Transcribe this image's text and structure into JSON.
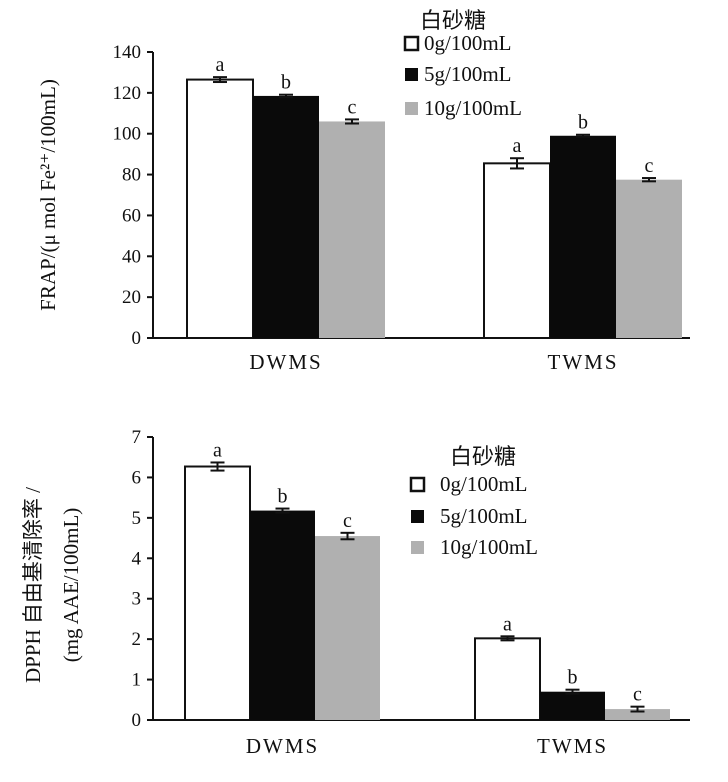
{
  "chart_data": [
    {
      "type": "bar",
      "ylabel": "FRAP/(μ mol Fe²⁺/100mL)",
      "ylim": [
        0,
        140
      ],
      "ytick_step": 20,
      "categories": [
        "DWMS",
        "TWMS"
      ],
      "legend_title": "白砂糖",
      "series": [
        {
          "name": "0g/100mL",
          "color": "#ffffff",
          "values": [
            126.5,
            85.5
          ],
          "errors": [
            1.2,
            2.5
          ],
          "letters": [
            "a",
            "a"
          ]
        },
        {
          "name": "5g/100mL",
          "color": "#0a0a0a",
          "values": [
            118.5,
            99.0
          ],
          "errors": [
            0.6,
            0.5
          ],
          "letters": [
            "b",
            "b"
          ]
        },
        {
          "name": "10g/100mL",
          "color": "#b0b0b0",
          "values": [
            106.0,
            77.5
          ],
          "errors": [
            1.0,
            0.8
          ],
          "letters": [
            "c",
            "c"
          ]
        }
      ]
    },
    {
      "type": "bar",
      "ylabel_line1": "DPPH 自由基清除率 /",
      "ylabel_line2": "(mg AAE/100mL)",
      "ylim": [
        0,
        7
      ],
      "ytick_step": 1,
      "categories": [
        "DWMS",
        "TWMS"
      ],
      "legend_title": "白砂糖",
      "series": [
        {
          "name": "0g/100mL",
          "color": "#ffffff",
          "values": [
            6.27,
            2.02
          ],
          "errors": [
            0.1,
            0.05
          ],
          "letters": [
            "a",
            "a"
          ]
        },
        {
          "name": "5g/100mL",
          "color": "#0a0a0a",
          "values": [
            5.18,
            0.7
          ],
          "errors": [
            0.05,
            0.05
          ],
          "letters": [
            "b",
            "b"
          ]
        },
        {
          "name": "10g/100mL",
          "color": "#b0b0b0",
          "values": [
            4.55,
            0.27
          ],
          "errors": [
            0.08,
            0.06
          ],
          "letters": [
            "c",
            "c"
          ]
        }
      ]
    }
  ]
}
